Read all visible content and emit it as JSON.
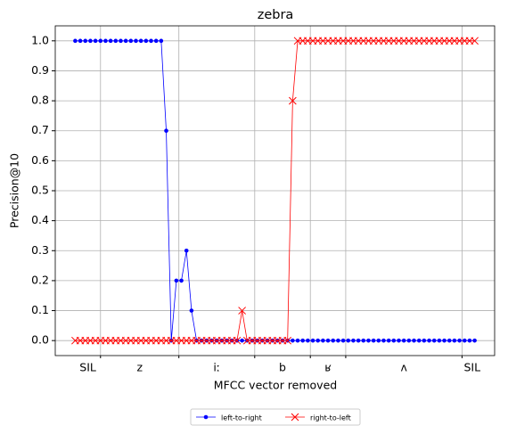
{
  "chart_data": {
    "type": "line",
    "title": "zebra",
    "x_label": "MFCC vector removed",
    "y_label": "Precision@10",
    "x": [
      0,
      1,
      2,
      3,
      4,
      5,
      6,
      7,
      8,
      9,
      10,
      11,
      12,
      13,
      14,
      15,
      16,
      17,
      18,
      19,
      20,
      21,
      22,
      23,
      24,
      25,
      26,
      27,
      28,
      29,
      30,
      31,
      32,
      33,
      34,
      35,
      36,
      37,
      38,
      39,
      40,
      41,
      42,
      43,
      44,
      45,
      46,
      47,
      48,
      49,
      50,
      51,
      52,
      53,
      54,
      55,
      56,
      57,
      58,
      59,
      60,
      61,
      62,
      63,
      64,
      65,
      66,
      67,
      68,
      69,
      70,
      71,
      72,
      73,
      74,
      75,
      76,
      77,
      78,
      79
    ],
    "series": [
      {
        "name": "left-to-right",
        "color": "#0000ff",
        "marker": "dot",
        "values": [
          1,
          1,
          1,
          1,
          1,
          1,
          1,
          1,
          1,
          1,
          1,
          1,
          1,
          1,
          1,
          1,
          1,
          1,
          0.7,
          0,
          0.2,
          0.2,
          0.3,
          0.1,
          0,
          0,
          0,
          0,
          0,
          0,
          0,
          0,
          0,
          0,
          0,
          0,
          0,
          0,
          0,
          0,
          0,
          0,
          0,
          0,
          0,
          0,
          0,
          0,
          0,
          0,
          0,
          0,
          0,
          0,
          0,
          0,
          0,
          0,
          0,
          0,
          0,
          0,
          0,
          0,
          0,
          0,
          0,
          0,
          0,
          0,
          0,
          0,
          0,
          0,
          0,
          0,
          0,
          0,
          0,
          0
        ]
      },
      {
        "name": "right-to-left",
        "color": "#ff0000",
        "marker": "x",
        "values": [
          0,
          0,
          0,
          0,
          0,
          0,
          0,
          0,
          0,
          0,
          0,
          0,
          0,
          0,
          0,
          0,
          0,
          0,
          0,
          0,
          0,
          0,
          0,
          0,
          0,
          0,
          0,
          0,
          0,
          0,
          0,
          0,
          0,
          0.1,
          0,
          0,
          0,
          0,
          0,
          0,
          0,
          0,
          0,
          0.8,
          1,
          1,
          1,
          1,
          1,
          1,
          1,
          1,
          1,
          1,
          1,
          1,
          1,
          1,
          1,
          1,
          1,
          1,
          1,
          1,
          1,
          1,
          1,
          1,
          1,
          1,
          1,
          1,
          1,
          1,
          1,
          1,
          1,
          1,
          1,
          1
        ]
      }
    ],
    "xlim": [
      -3.95,
      82.95
    ],
    "xticks": [
      {
        "value": 2.5,
        "label": "SIL"
      },
      {
        "value": 12.75,
        "label": "z"
      },
      {
        "value": 28,
        "label": "iː"
      },
      {
        "value": 41,
        "label": "b"
      },
      {
        "value": 50,
        "label": "ʁ"
      },
      {
        "value": 65,
        "label": "ʌ"
      },
      {
        "value": 78.5,
        "label": "SIL"
      }
    ],
    "xminorticks": [
      5,
      20.5,
      35.5,
      46.5,
      53.5,
      76.5
    ],
    "ylim": [
      -0.05,
      1.05
    ],
    "yticks": [
      {
        "value": 0,
        "label": "0.0"
      },
      {
        "value": 0.1,
        "label": "0.1"
      },
      {
        "value": 0.2,
        "label": "0.2"
      },
      {
        "value": 0.3,
        "label": "0.3"
      },
      {
        "value": 0.4,
        "label": "0.4"
      },
      {
        "value": 0.5,
        "label": "0.5"
      },
      {
        "value": 0.6,
        "label": "0.6"
      },
      {
        "value": 0.7,
        "label": "0.7"
      },
      {
        "value": 0.8,
        "label": "0.8"
      },
      {
        "value": 0.9,
        "label": "0.9"
      },
      {
        "value": 1,
        "label": "1.0"
      }
    ],
    "grid": true,
    "legend": "bottom"
  }
}
